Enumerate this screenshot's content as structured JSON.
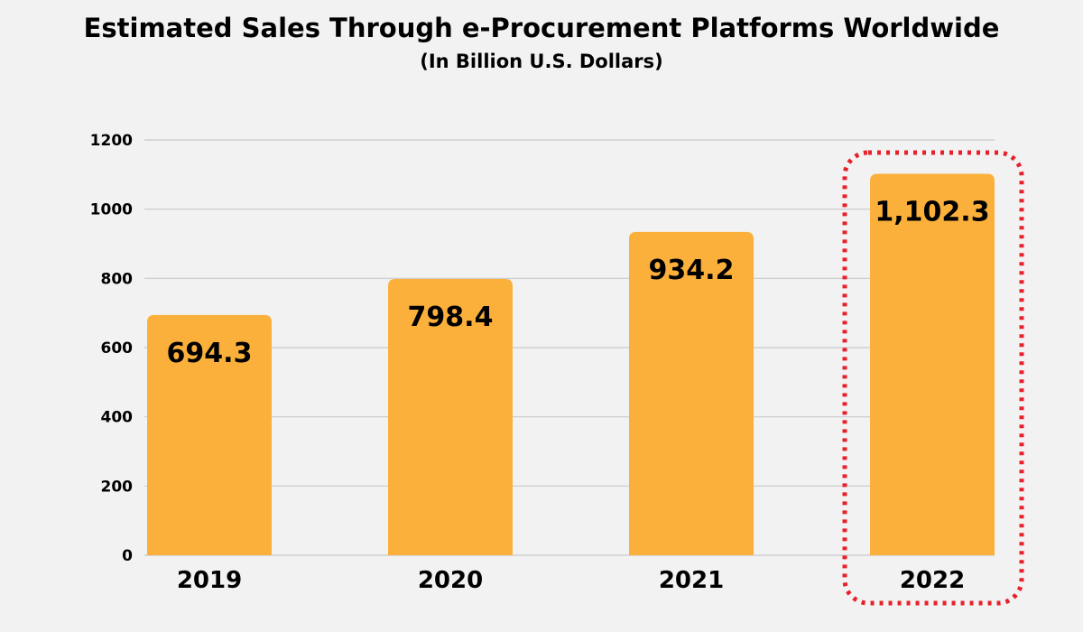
{
  "chart_data": {
    "type": "bar",
    "title": "Estimated Sales Through e-Procurement Platforms Worldwide",
    "subtitle": "(In Billion U.S. Dollars)",
    "xlabel": "",
    "ylabel": "",
    "categories": [
      "2019",
      "2020",
      "2021",
      "2022"
    ],
    "values": [
      694.3,
      798.4,
      934.2,
      1102.3
    ],
    "data_labels": [
      "694.3",
      "798.4",
      "934.2",
      "1,102.3"
    ],
    "ylim": [
      0,
      1200
    ],
    "yticks": [
      "0",
      "200",
      "400",
      "600",
      "800",
      "1000",
      "1200"
    ],
    "grid": true,
    "highlighted_category": "2022",
    "colors": {
      "bar": "#fbb03b",
      "highlight_border": "#e8202a",
      "grid": "#c8c8c8",
      "background": "#f2f2f2"
    }
  }
}
